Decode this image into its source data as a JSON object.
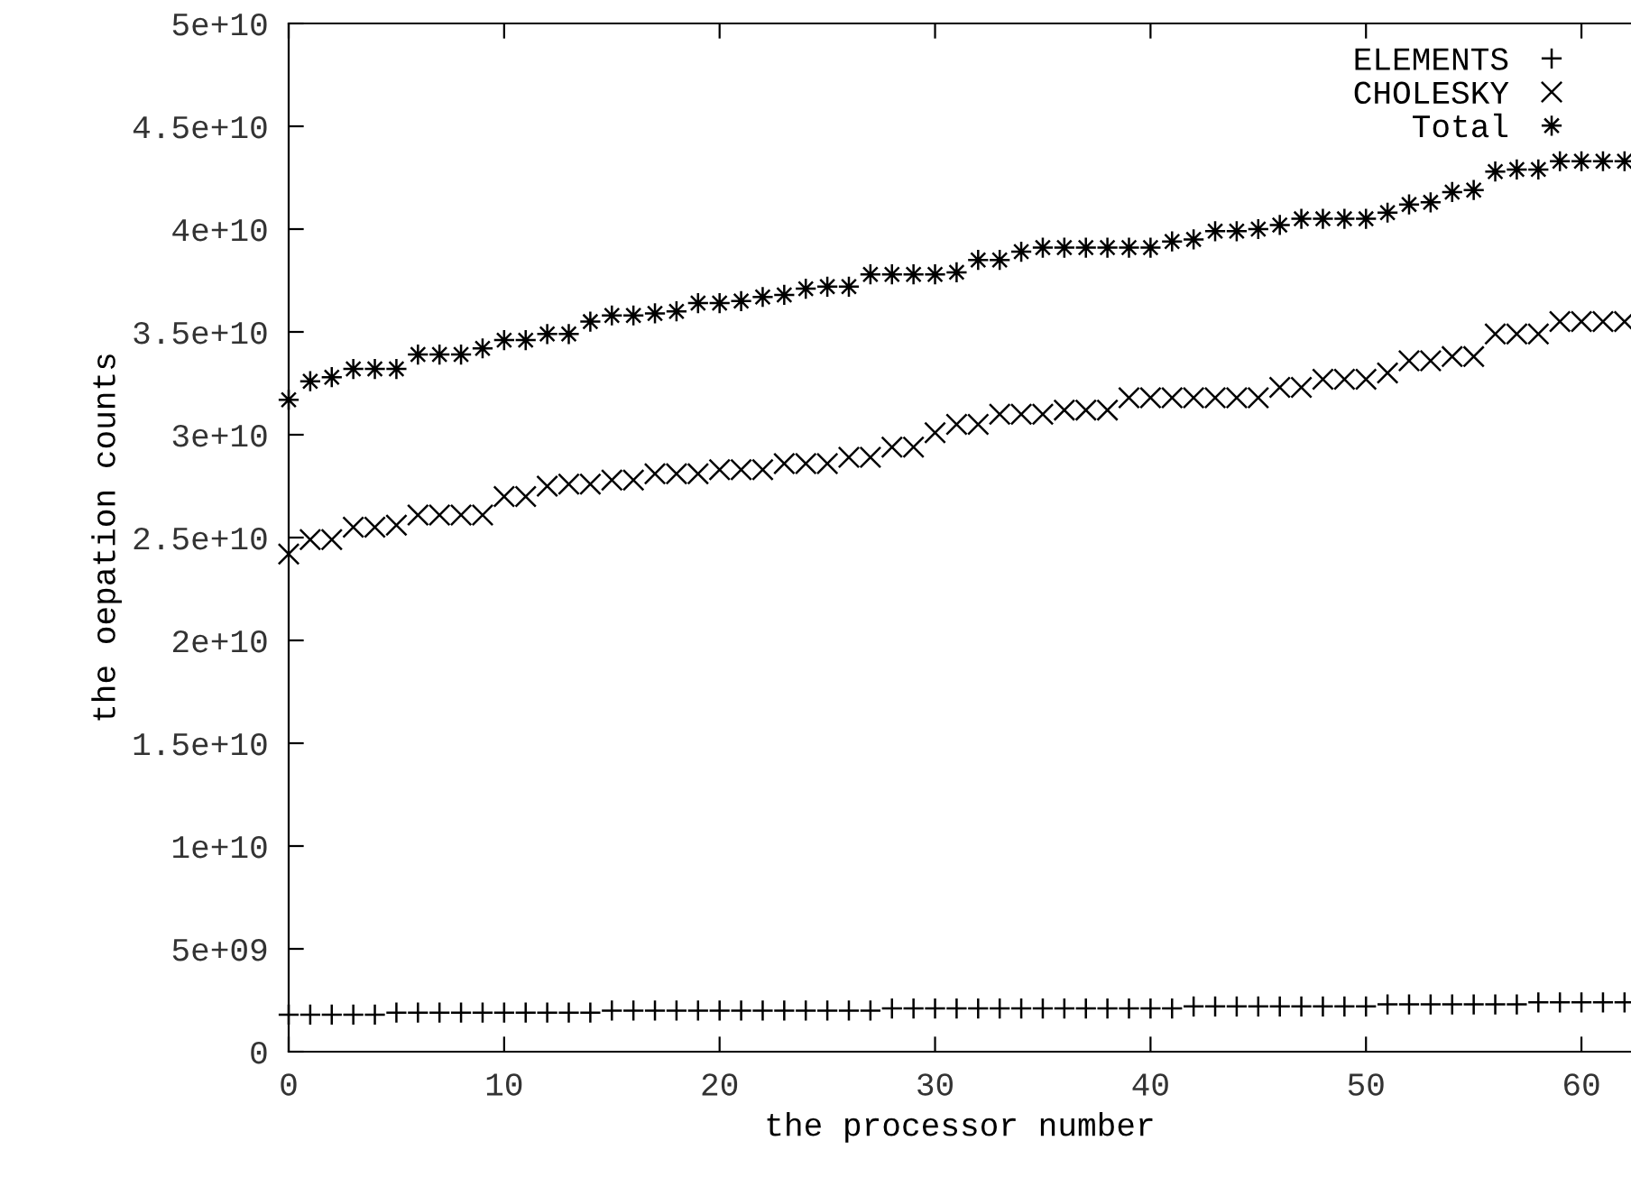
{
  "chart_data": {
    "type": "scatter",
    "xlabel": "the processor number",
    "ylabel": "the oepation counts",
    "x": [
      0,
      1,
      2,
      3,
      4,
      5,
      6,
      7,
      8,
      9,
      10,
      11,
      12,
      13,
      14,
      15,
      16,
      17,
      18,
      19,
      20,
      21,
      22,
      23,
      24,
      25,
      26,
      27,
      28,
      29,
      30,
      31,
      32,
      33,
      34,
      35,
      36,
      37,
      38,
      39,
      40,
      41,
      42,
      43,
      44,
      45,
      46,
      47,
      48,
      49,
      50,
      51,
      52,
      53,
      54,
      55,
      56,
      57,
      58,
      59,
      60,
      61,
      62
    ],
    "xlim": [
      0,
      62.3
    ],
    "xticks": [
      0,
      10,
      20,
      30,
      40,
      50,
      60
    ],
    "ylim": [
      0,
      50000000000.0
    ],
    "yticks": [
      {
        "value": 0,
        "label": "0"
      },
      {
        "value": 5000000000.0,
        "label": "5e+09"
      },
      {
        "value": 10000000000.0,
        "label": "1e+10"
      },
      {
        "value": 15000000000.0,
        "label": "1.5e+10"
      },
      {
        "value": 20000000000.0,
        "label": "2e+10"
      },
      {
        "value": 25000000000.0,
        "label": "2.5e+10"
      },
      {
        "value": 30000000000.0,
        "label": "3e+10"
      },
      {
        "value": 35000000000.0,
        "label": "3.5e+10"
      },
      {
        "value": 40000000000.0,
        "label": "4e+10"
      },
      {
        "value": 45000000000.0,
        "label": "4.5e+10"
      },
      {
        "value": 50000000000.0,
        "label": "5e+10"
      }
    ],
    "legend": "top right",
    "grid": false,
    "series": [
      {
        "name": "ELEMENTS",
        "color": "#000000",
        "marker": "plus",
        "values": [
          1800000000.0,
          1800000000.0,
          1800000000.0,
          1800000000.0,
          1800000000.0,
          1900000000.0,
          1900000000.0,
          1900000000.0,
          1900000000.0,
          1900000000.0,
          1900000000.0,
          1900000000.0,
          1900000000.0,
          1900000000.0,
          1900000000.0,
          2000000000.0,
          2000000000.0,
          2000000000.0,
          2000000000.0,
          2000000000.0,
          2000000000.0,
          2000000000.0,
          2000000000.0,
          2000000000.0,
          2000000000.0,
          2000000000.0,
          2000000000.0,
          2000000000.0,
          2100000000.0,
          2100000000.0,
          2100000000.0,
          2100000000.0,
          2100000000.0,
          2100000000.0,
          2100000000.0,
          2100000000.0,
          2100000000.0,
          2100000000.0,
          2100000000.0,
          2100000000.0,
          2100000000.0,
          2100000000.0,
          2200000000.0,
          2200000000.0,
          2200000000.0,
          2200000000.0,
          2200000000.0,
          2200000000.0,
          2200000000.0,
          2200000000.0,
          2200000000.0,
          2300000000.0,
          2300000000.0,
          2300000000.0,
          2300000000.0,
          2300000000.0,
          2300000000.0,
          2300000000.0,
          2400000000.0,
          2400000000.0,
          2400000000.0,
          2400000000.0,
          2400000000.0
        ]
      },
      {
        "name": "CHOLESKY",
        "color": "#000000",
        "marker": "x",
        "values": [
          24200000000.0,
          24900000000.0,
          24900000000.0,
          25500000000.0,
          25500000000.0,
          25600000000.0,
          26100000000.0,
          26100000000.0,
          26100000000.0,
          26100000000.0,
          27000000000.0,
          27000000000.0,
          27500000000.0,
          27600000000.0,
          27600000000.0,
          27800000000.0,
          27800000000.0,
          28100000000.0,
          28100000000.0,
          28100000000.0,
          28300000000.0,
          28300000000.0,
          28300000000.0,
          28600000000.0,
          28600000000.0,
          28600000000.0,
          28900000000.0,
          28900000000.0,
          29400000000.0,
          29400000000.0,
          30100000000.0,
          30500000000.0,
          30500000000.0,
          31000000000.0,
          31000000000.0,
          31000000000.0,
          31200000000.0,
          31200000000.0,
          31200000000.0,
          31800000000.0,
          31800000000.0,
          31800000000.0,
          31800000000.0,
          31800000000.0,
          31800000000.0,
          31800000000.0,
          32300000000.0,
          32300000000.0,
          32700000000.0,
          32700000000.0,
          32700000000.0,
          33000000000.0,
          33600000000.0,
          33600000000.0,
          33800000000.0,
          33800000000.0,
          34900000000.0,
          34900000000.0,
          34900000000.0,
          35500000000.0,
          35500000000.0,
          35500000000.0,
          35500000000.0
        ]
      },
      {
        "name": "Total",
        "color": "#000000",
        "marker": "cross",
        "values": [
          31700000000.0,
          32600000000.0,
          32800000000.0,
          33200000000.0,
          33200000000.0,
          33200000000.0,
          33900000000.0,
          33900000000.0,
          33900000000.0,
          34200000000.0,
          34600000000.0,
          34600000000.0,
          34900000000.0,
          34900000000.0,
          35500000000.0,
          35800000000.0,
          35800000000.0,
          35900000000.0,
          36000000000.0,
          36400000000.0,
          36400000000.0,
          36500000000.0,
          36700000000.0,
          36800000000.0,
          37100000000.0,
          37200000000.0,
          37200000000.0,
          37800000000.0,
          37800000000.0,
          37800000000.0,
          37800000000.0,
          37900000000.0,
          38500000000.0,
          38500000000.0,
          38900000000.0,
          39100000000.0,
          39100000000.0,
          39100000000.0,
          39100000000.0,
          39100000000.0,
          39100000000.0,
          39400000000.0,
          39500000000.0,
          39900000000.0,
          39900000000.0,
          40000000000.0,
          40200000000.0,
          40500000000.0,
          40500000000.0,
          40500000000.0,
          40500000000.0,
          40800000000.0,
          41200000000.0,
          41300000000.0,
          41800000000.0,
          41900000000.0,
          42800000000.0,
          42900000000.0,
          42900000000.0,
          43300000000.0,
          43300000000.0,
          43300000000.0,
          43300000000.0
        ]
      }
    ]
  }
}
